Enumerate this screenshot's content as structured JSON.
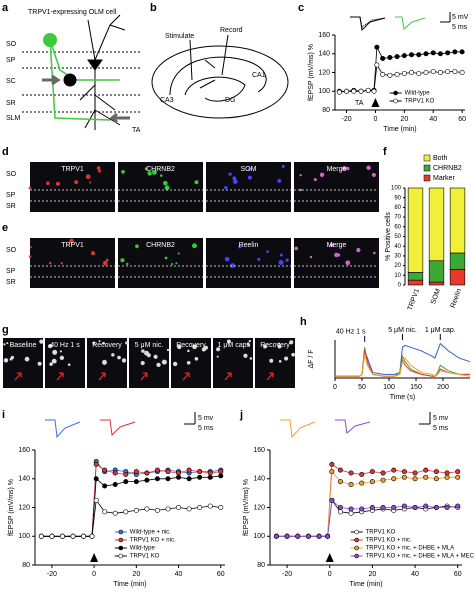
{
  "panel_labels": [
    "a",
    "b",
    "c",
    "d",
    "e",
    "f",
    "g",
    "h",
    "i",
    "j"
  ],
  "diagram_a": {
    "title": "TRPV1-expressing OLM cell",
    "layers": [
      "SO",
      "SP",
      "SC",
      "SR",
      "SLM"
    ],
    "input": "TA"
  },
  "diagram_b": {
    "labels": [
      "Stimulate",
      "Record",
      "CA1",
      "CA3",
      "DG"
    ]
  },
  "images_d": {
    "columns": [
      "TRPV1",
      "CHRNB2",
      "SOM",
      "Merge"
    ],
    "layers": [
      "SO",
      "SP",
      "SR"
    ]
  },
  "images_e": {
    "columns": [
      "TRPV1",
      "CHRNB2",
      "Reelin",
      "Merge"
    ],
    "layers": [
      "SO",
      "SP",
      "SR"
    ]
  },
  "images_g": {
    "columns": [
      "Baseline",
      "40 Hz 1 s",
      "Recovery",
      "5 μM nic.",
      "Recovery",
      "1 μM cap.",
      "Recovery"
    ]
  },
  "chart_data": [
    {
      "type": "line",
      "markers": true,
      "x_label": "Time (min)",
      "y_label": "fEPSP (mV/ms) %",
      "annotation": "TA",
      "scale_labels": [
        "5 mV",
        "5 ms"
      ],
      "legend": "lower right",
      "x": [
        -25,
        -20,
        -15,
        -10,
        -5,
        -1,
        1,
        5,
        10,
        15,
        20,
        25,
        30,
        35,
        40,
        45,
        50,
        55,
        60
      ],
      "xlim": [
        -28,
        62
      ],
      "xticks": [
        -20,
        0,
        20,
        40,
        60
      ],
      "ylim": [
        80,
        160
      ],
      "yticks": [
        80,
        100,
        120,
        140,
        160
      ],
      "series": [
        {
          "name": "Wild-type",
          "color": "#000000",
          "values": [
            100,
            100,
            101,
            100,
            101,
            101,
            147,
            135,
            136,
            137,
            138,
            139,
            139,
            140,
            141,
            140,
            141,
            142,
            142
          ]
        },
        {
          "name": "TRPV1 KO",
          "color": "#ffffff",
          "values": [
            99,
            100,
            100,
            100,
            101,
            100,
            128,
            118,
            117,
            118,
            119,
            120,
            119,
            120,
            121,
            120,
            121,
            121,
            120
          ]
        }
      ]
    },
    {
      "type": "bar",
      "stacked": true,
      "y_label": "% Positive cells",
      "legend": "upper right",
      "categories": [
        "TRPV1",
        "SOM",
        "Reelin"
      ],
      "ylim": [
        0,
        100
      ],
      "yticks": [
        0,
        10,
        20,
        30,
        40,
        50,
        60,
        70,
        80,
        90,
        100
      ],
      "series": [
        {
          "name": "Marker",
          "color": "#e8392a",
          "values": [
            5,
            3,
            16
          ]
        },
        {
          "name": "CHRNB2",
          "color": "#3aa935",
          "values": [
            8,
            22,
            17
          ]
        },
        {
          "name": "Both",
          "color": "#f2ef3a",
          "values": [
            87,
            75,
            67
          ]
        }
      ]
    },
    {
      "type": "line",
      "markers": false,
      "x_label": "Time (s)",
      "y_label": "ΔF / F",
      "annotations": [
        "40 Hz 1 s",
        "5 μM nic.",
        "1 μM cap."
      ],
      "x": [
        0,
        45,
        50,
        55,
        60,
        70,
        90,
        110,
        120,
        125,
        130,
        140,
        160,
        180,
        185,
        190,
        195,
        210,
        230,
        250
      ],
      "xlim": [
        0,
        250
      ],
      "xticks": [
        0,
        50,
        100,
        150,
        200
      ],
      "ylim": [
        -0.05,
        1
      ],
      "series": [
        {
          "color": "#2f5fd0",
          "values": [
            0,
            0,
            0.05,
            0.7,
            0.5,
            0.1,
            0.05,
            0.05,
            0.1,
            0.8,
            0.85,
            0.8,
            0.7,
            0.55,
            0.5,
            0.7,
            0.9,
            0.7,
            0.5,
            0.4
          ]
        },
        {
          "color": "#3aa935",
          "values": [
            0,
            0,
            0.05,
            0.8,
            0.3,
            0.05,
            0,
            0,
            0.1,
            0.55,
            0.4,
            0.2,
            0.05,
            0,
            0,
            0.1,
            0.3,
            0.15,
            0.05,
            0.05
          ]
        },
        {
          "color": "#e8392a",
          "values": [
            0,
            0,
            0.05,
            0.75,
            0.4,
            0.05,
            0,
            0,
            0.05,
            0.45,
            0.3,
            0.15,
            0.05,
            0,
            0,
            0.05,
            0.2,
            0.1,
            0.05,
            0.05
          ]
        },
        {
          "color": "#f0a030",
          "values": [
            0,
            0,
            0.05,
            0.6,
            0.3,
            0.05,
            0,
            0,
            0.05,
            0.4,
            0.5,
            0.3,
            0.1,
            0.05,
            0,
            0.05,
            0.15,
            0.1,
            0.05,
            0
          ]
        }
      ]
    },
    {
      "type": "line",
      "markers": true,
      "x_label": "Time (min)",
      "y_label": "fEPSP (mV/ms) %",
      "scale_labels": [
        "5 mv",
        "5 ms"
      ],
      "legend": "lower right",
      "x": [
        -25,
        -20,
        -15,
        -10,
        -5,
        -1,
        1,
        5,
        10,
        15,
        20,
        25,
        30,
        35,
        40,
        45,
        50,
        55,
        60
      ],
      "xlim": [
        -28,
        62
      ],
      "xticks": [
        -20,
        0,
        20,
        40,
        60
      ],
      "ylim": [
        80,
        160
      ],
      "yticks": [
        80,
        100,
        120,
        140,
        160
      ],
      "series": [
        {
          "name": "Wild-type + nic.",
          "color": "#3a6fd8",
          "values": [
            100,
            100,
            100,
            100,
            100,
            100,
            152,
            145,
            146,
            145,
            143,
            144,
            145,
            146,
            145,
            144,
            145,
            145,
            146
          ]
        },
        {
          "name": "TRPV1 KO + nic.",
          "color": "#dd3333",
          "values": [
            100,
            100,
            100,
            100,
            100,
            100,
            150,
            146,
            144,
            143,
            145,
            144,
            146,
            145,
            144,
            146,
            145,
            144,
            145
          ]
        },
        {
          "name": "Wild-type",
          "color": "#000000",
          "values": [
            100,
            100,
            100,
            100,
            100,
            100,
            140,
            135,
            136,
            138,
            138,
            139,
            140,
            140,
            141,
            140,
            141,
            141,
            142
          ]
        },
        {
          "name": "TRPV1 KO",
          "color": "#ffffff",
          "values": [
            100,
            100,
            100,
            100,
            100,
            100,
            125,
            117,
            116,
            117,
            118,
            119,
            118,
            119,
            120,
            119,
            120,
            121,
            120
          ]
        }
      ]
    },
    {
      "type": "line",
      "markers": true,
      "x_label": "Time (min)",
      "y_label": "fEPSP (mV/ms) %",
      "scale_labels": [
        "5 mv",
        "5 ms"
      ],
      "legend": "lower right",
      "x": [
        -25,
        -20,
        -15,
        -10,
        -5,
        -1,
        1,
        5,
        10,
        15,
        20,
        25,
        30,
        35,
        40,
        45,
        50,
        55,
        60
      ],
      "xlim": [
        -28,
        62
      ],
      "xticks": [
        -20,
        0,
        20,
        40,
        60
      ],
      "ylim": [
        80,
        160
      ],
      "yticks": [
        80,
        100,
        120,
        140,
        160
      ],
      "series": [
        {
          "name": "TRPV1 KO",
          "color": "#ffffff",
          "values": [
            100,
            100,
            100,
            100,
            100,
            100,
            125,
            117,
            116,
            117,
            118,
            119,
            118,
            119,
            120,
            119,
            120,
            121,
            120
          ]
        },
        {
          "name": "TRPV1 KO + nic.",
          "color": "#dd3333",
          "values": [
            100,
            100,
            100,
            100,
            100,
            100,
            150,
            146,
            144,
            143,
            145,
            144,
            146,
            145,
            144,
            146,
            145,
            144,
            145
          ]
        },
        {
          "name": "TRPV1 KO + nic. + DHBE + MLA",
          "color": "#f0a030",
          "values": [
            100,
            100,
            100,
            100,
            100,
            100,
            145,
            138,
            136,
            137,
            138,
            139,
            140,
            141,
            140,
            141,
            140,
            141,
            141
          ]
        },
        {
          "name": "TRPV1 KO + nic. + DHBE + MLA + MEC",
          "color": "#8a4fd0",
          "values": [
            100,
            100,
            100,
            100,
            100,
            100,
            125,
            120,
            119,
            119,
            120,
            120,
            120,
            121,
            120,
            121,
            120,
            120,
            121
          ]
        }
      ]
    }
  ]
}
